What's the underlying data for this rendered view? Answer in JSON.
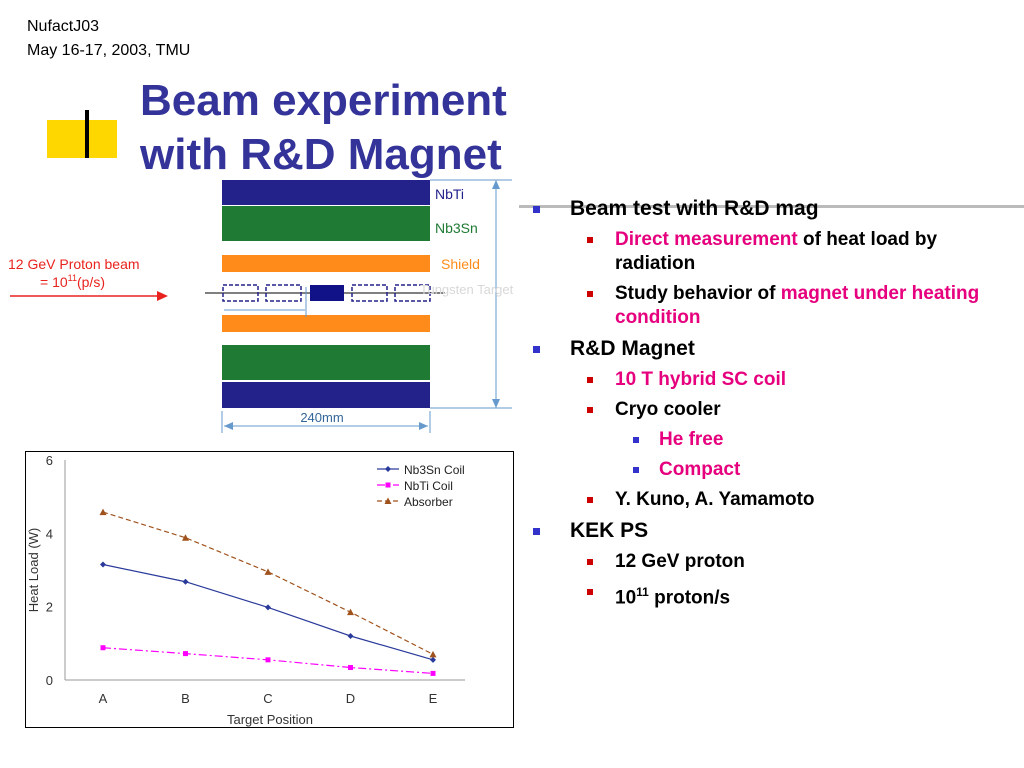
{
  "header": {
    "line1": "NufactJ03",
    "line2": "May 16-17, 2003, TMU"
  },
  "title": {
    "line1": "Beam experiment",
    "line2": "with R&D Magnet"
  },
  "diagram": {
    "layers": {
      "nbti": "NbTi",
      "nb3sn": "Nb3Sn",
      "shield": "Shield"
    },
    "target_label": "Tungsten Target",
    "beam_label_line1": "12 GeV Proton beam",
    "beam_label_line2_prefix": "= 10",
    "beam_label_exp": "11",
    "beam_label_line2_suffix": "(p/s)",
    "width_label": "240mm",
    "colors": {
      "nbti": "#22228a",
      "nb3sn": "#1f7a34",
      "shield": "#ff8c1a",
      "target": "#111188",
      "beam_text": "#e8231e"
    }
  },
  "bullets": {
    "b1": "Beam test with R&D mag",
    "b1_1_pink": "Direct measurement",
    "b1_1_rest": " of heat load by radiation",
    "b1_2_text": "Study behavior of ",
    "b1_2_pink": "magnet under heating condition",
    "b2": "R&D Magnet",
    "b2_1": "10 T hybrid SC coil",
    "b2_2": "Cryo cooler",
    "b2_2_1": "He free",
    "b2_2_2": "Compact",
    "b2_3": "Y. Kuno, A. Yamamoto",
    "b3": "KEK PS",
    "b3_1": "12 GeV proton",
    "b3_2_base": "10",
    "b3_2_exp": "11",
    "b3_2_rest": " proton/s"
  },
  "chart_data": {
    "type": "line",
    "categories": [
      "A",
      "B",
      "C",
      "D",
      "E"
    ],
    "xlabel": "Target Position",
    "ylabel": "Heat Load (W)",
    "ylim": [
      0,
      6
    ],
    "yticks": [
      "0",
      "2",
      "4",
      "6"
    ],
    "legend_position": "top-right",
    "series": [
      {
        "name": "Nb3Sn Coil",
        "values": [
          3.15,
          2.68,
          1.98,
          1.2,
          0.55
        ],
        "color": "#2a3a9a",
        "marker": "diamond",
        "dash": ""
      },
      {
        "name": "NbTi Coil",
        "values": [
          0.88,
          0.72,
          0.55,
          0.34,
          0.18
        ],
        "color": "#ff00ff",
        "marker": "square",
        "dash": "8,3,2,3"
      },
      {
        "name": "Absorber",
        "values": [
          4.58,
          3.88,
          2.95,
          1.85,
          0.7
        ],
        "color": "#a0521c",
        "marker": "triangle",
        "dash": "5,3"
      }
    ]
  }
}
